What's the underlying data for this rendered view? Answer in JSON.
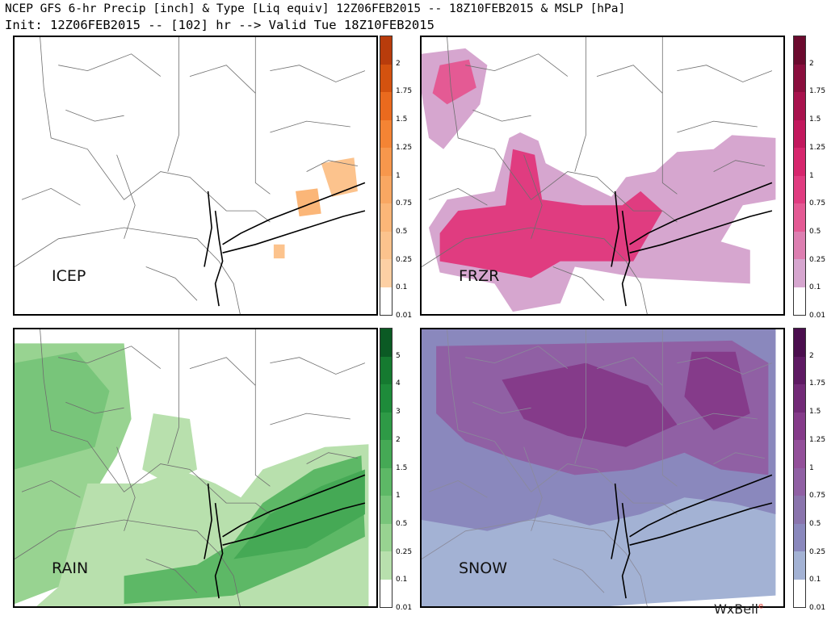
{
  "header": {
    "line1": "NCEP GFS 6-hr Precip [inch] & Type [Liq equiv] 12Z06FEB2015 -- 18Z10FEB2015 & MSLP [hPa]",
    "line2": "Init: 12Z06FEB2015 -- [102] hr --> Valid Tue 18Z10FEB2015"
  },
  "panels": [
    {
      "label": "ICEP",
      "scale_ticks": [
        "2",
        "1.75",
        "1.5",
        "1.25",
        "1",
        "0.75",
        "0.5",
        "0.25",
        "0.1",
        "0.01"
      ],
      "scale_colors": [
        "#b83c0c",
        "#d4520f",
        "#ea6a1e",
        "#f48434",
        "#f7974c",
        "#f9a762",
        "#fbb678",
        "#fcc38d",
        "#fdd0a4",
        "#ffffff"
      ],
      "areas": [
        {
          "label": "icep-east",
          "points": [
            [
              0.84,
              0.45
            ],
            [
              0.93,
              0.43
            ],
            [
              0.94,
              0.55
            ],
            [
              0.87,
              0.57
            ]
          ],
          "color": "#fcc38d"
        },
        {
          "label": "icep-coast",
          "points": [
            [
              0.77,
              0.55
            ],
            [
              0.83,
              0.54
            ],
            [
              0.84,
              0.63
            ],
            [
              0.78,
              0.64
            ]
          ],
          "color": "#fbb678"
        },
        {
          "label": "icep-li",
          "points": [
            [
              0.71,
              0.74
            ],
            [
              0.74,
              0.74
            ],
            [
              0.74,
              0.79
            ],
            [
              0.71,
              0.79
            ]
          ],
          "color": "#fcc38d"
        }
      ]
    },
    {
      "label": "FRZR",
      "scale_ticks": [
        "2",
        "1.75",
        "1.5",
        "1.25",
        "1",
        "0.75",
        "0.5",
        "0.25",
        "0.1",
        "0.01"
      ],
      "scale_colors": [
        "#6b0a2e",
        "#8a0e3d",
        "#a8124d",
        "#c2185d",
        "#d6266d",
        "#e03c80",
        "#e45a94",
        "#dd7fb1",
        "#d6a6cf",
        "#ffffff"
      ],
      "areas": [
        {
          "label": "frzr-outer",
          "points": [
            [
              0.02,
              0.68
            ],
            [
              0.07,
              0.58
            ],
            [
              0.2,
              0.55
            ],
            [
              0.24,
              0.36
            ],
            [
              0.27,
              0.34
            ],
            [
              0.32,
              0.37
            ],
            [
              0.34,
              0.45
            ],
            [
              0.44,
              0.52
            ],
            [
              0.52,
              0.57
            ],
            [
              0.56,
              0.5
            ],
            [
              0.64,
              0.48
            ],
            [
              0.7,
              0.41
            ],
            [
              0.8,
              0.4
            ],
            [
              0.85,
              0.35
            ],
            [
              0.97,
              0.36
            ],
            [
              0.97,
              0.58
            ],
            [
              0.88,
              0.6
            ],
            [
              0.82,
              0.73
            ],
            [
              0.9,
              0.76
            ],
            [
              0.9,
              0.88
            ],
            [
              0.6,
              0.86
            ],
            [
              0.42,
              0.82
            ],
            [
              0.38,
              0.95
            ],
            [
              0.25,
              0.98
            ],
            [
              0.2,
              0.88
            ],
            [
              0.05,
              0.84
            ]
          ],
          "color": "#d6a6cf"
        },
        {
          "label": "frzr-north",
          "points": [
            [
              0.0,
              0.06
            ],
            [
              0.12,
              0.04
            ],
            [
              0.18,
              0.1
            ],
            [
              0.16,
              0.24
            ],
            [
              0.06,
              0.4
            ],
            [
              0.02,
              0.36
            ],
            [
              0.0,
              0.2
            ]
          ],
          "color": "#d6a6cf"
        },
        {
          "label": "frzr-core-north",
          "points": [
            [
              0.05,
              0.1
            ],
            [
              0.13,
              0.08
            ],
            [
              0.15,
              0.18
            ],
            [
              0.07,
              0.24
            ],
            [
              0.03,
              0.2
            ]
          ],
          "color": "#e45a94"
        },
        {
          "label": "frzr-core",
          "points": [
            [
              0.05,
              0.7
            ],
            [
              0.1,
              0.62
            ],
            [
              0.23,
              0.6
            ],
            [
              0.25,
              0.4
            ],
            [
              0.31,
              0.42
            ],
            [
              0.33,
              0.58
            ],
            [
              0.44,
              0.6
            ],
            [
              0.55,
              0.6
            ],
            [
              0.6,
              0.55
            ],
            [
              0.66,
              0.62
            ],
            [
              0.58,
              0.8
            ],
            [
              0.38,
              0.8
            ],
            [
              0.3,
              0.86
            ],
            [
              0.14,
              0.82
            ],
            [
              0.05,
              0.8
            ]
          ],
          "color": "#e03c80"
        }
      ]
    },
    {
      "label": "RAIN",
      "scale_ticks": [
        "5",
        "4",
        "3",
        "2",
        "1.5",
        "1",
        "0.5",
        "0.25",
        "0.1",
        "0.01"
      ],
      "scale_colors": [
        "#0b5a24",
        "#157a30",
        "#1e8b3a",
        "#2e9a46",
        "#45a955",
        "#5db866",
        "#78c57a",
        "#98d391",
        "#b8e0ad",
        "#ffffff"
      ],
      "areas": [
        {
          "label": "rain-west",
          "points": [
            [
              0.0,
              0.05
            ],
            [
              0.3,
              0.05
            ],
            [
              0.32,
              0.32
            ],
            [
              0.28,
              0.45
            ],
            [
              0.22,
              0.58
            ],
            [
              0.18,
              0.82
            ],
            [
              0.12,
              0.92
            ],
            [
              0.0,
              0.98
            ]
          ],
          "color": "#98d391"
        },
        {
          "label": "rain-south",
          "points": [
            [
              0.12,
              0.92
            ],
            [
              0.2,
              0.55
            ],
            [
              0.35,
              0.55
            ],
            [
              0.45,
              0.5
            ],
            [
              0.55,
              0.55
            ],
            [
              0.62,
              0.6
            ],
            [
              0.68,
              0.5
            ],
            [
              0.85,
              0.42
            ],
            [
              0.97,
              0.41
            ],
            [
              0.97,
              1.0
            ],
            [
              0.05,
              1.0
            ]
          ],
          "color": "#b8e0ad"
        },
        {
          "label": "rain-hudson",
          "points": [
            [
              0.38,
              0.3
            ],
            [
              0.48,
              0.32
            ],
            [
              0.5,
              0.5
            ],
            [
              0.42,
              0.55
            ],
            [
              0.35,
              0.5
            ]
          ],
          "color": "#b8e0ad"
        },
        {
          "label": "rain-core-west",
          "points": [
            [
              0.0,
              0.12
            ],
            [
              0.17,
              0.08
            ],
            [
              0.26,
              0.22
            ],
            [
              0.22,
              0.42
            ],
            [
              0.0,
              0.5
            ]
          ],
          "color": "#78c57a"
        },
        {
          "label": "rain-core-south",
          "points": [
            [
              0.3,
              0.88
            ],
            [
              0.5,
              0.84
            ],
            [
              0.6,
              0.76
            ],
            [
              0.68,
              0.62
            ],
            [
              0.82,
              0.5
            ],
            [
              0.95,
              0.45
            ],
            [
              0.96,
              0.74
            ],
            [
              0.8,
              0.84
            ],
            [
              0.6,
              0.95
            ],
            [
              0.3,
              0.98
            ]
          ],
          "color": "#5db866"
        },
        {
          "label": "rain-core-li",
          "points": [
            [
              0.6,
              0.82
            ],
            [
              0.7,
              0.66
            ],
            [
              0.84,
              0.56
            ],
            [
              0.96,
              0.5
            ],
            [
              0.96,
              0.66
            ],
            [
              0.8,
              0.78
            ]
          ],
          "color": "#45a955"
        }
      ]
    },
    {
      "label": "SNOW",
      "scale_ticks": [
        "2",
        "1.75",
        "1.5",
        "1.25",
        "1",
        "0.75",
        "0.5",
        "0.25",
        "0.1",
        "0.01"
      ],
      "scale_colors": [
        "#4b0e4e",
        "#5e1a63",
        "#722a77",
        "#853b8a",
        "#93509a",
        "#9060a4",
        "#8a74ad",
        "#8a88bd",
        "#a3b2d4",
        "#ffffff"
      ],
      "areas": [
        {
          "label": "snow-light",
          "points": [
            [
              0.0,
              0.0
            ],
            [
              0.97,
              0.0
            ],
            [
              0.97,
              0.95
            ],
            [
              0.6,
              0.98
            ],
            [
              0.4,
              1.0
            ],
            [
              0.0,
              1.0
            ]
          ],
          "color": "#a3b2d4"
        },
        {
          "label": "snow-mid",
          "points": [
            [
              0.0,
              0.0
            ],
            [
              0.97,
              0.0
            ],
            [
              0.97,
              0.66
            ],
            [
              0.85,
              0.62
            ],
            [
              0.72,
              0.6
            ],
            [
              0.6,
              0.66
            ],
            [
              0.46,
              0.7
            ],
            [
              0.35,
              0.66
            ],
            [
              0.18,
              0.72
            ],
            [
              0.0,
              0.68
            ]
          ],
          "color": "#8a88bd"
        },
        {
          "label": "snow-heavy",
          "points": [
            [
              0.04,
              0.06
            ],
            [
              0.85,
              0.04
            ],
            [
              0.95,
              0.12
            ],
            [
              0.95,
              0.52
            ],
            [
              0.82,
              0.5
            ],
            [
              0.72,
              0.44
            ],
            [
              0.58,
              0.5
            ],
            [
              0.42,
              0.52
            ],
            [
              0.25,
              0.46
            ],
            [
              0.12,
              0.4
            ],
            [
              0.04,
              0.3
            ]
          ],
          "color": "#9060a4"
        },
        {
          "label": "snow-core",
          "points": [
            [
              0.22,
              0.18
            ],
            [
              0.45,
              0.12
            ],
            [
              0.62,
              0.2
            ],
            [
              0.7,
              0.34
            ],
            [
              0.56,
              0.42
            ],
            [
              0.4,
              0.38
            ],
            [
              0.28,
              0.32
            ]
          ],
          "color": "#853b8a"
        },
        {
          "label": "snow-core-ne",
          "points": [
            [
              0.74,
              0.08
            ],
            [
              0.86,
              0.08
            ],
            [
              0.9,
              0.3
            ],
            [
              0.8,
              0.36
            ],
            [
              0.72,
              0.24
            ]
          ],
          "color": "#853b8a"
        }
      ]
    }
  ],
  "credit": {
    "text": "WxBell",
    "mark": "e"
  }
}
